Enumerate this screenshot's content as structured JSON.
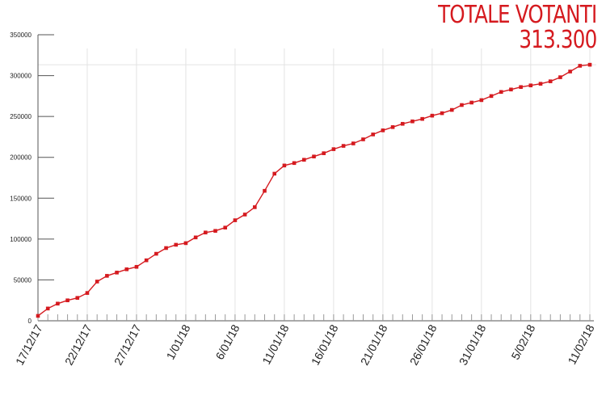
{
  "title": "TOTALE VOTANTI",
  "subtitle": "313.300",
  "colors": {
    "series": "#d51a1f",
    "grid": "#e3e3e3",
    "axis": "#555555",
    "text": "#222222"
  },
  "chart_data": {
    "type": "line",
    "title": "TOTALE VOTANTI",
    "subtitle": "313.300",
    "xlabel": "",
    "ylabel": "",
    "ylim": [
      0,
      350000
    ],
    "yticks": [
      0,
      50000,
      100000,
      150000,
      200000,
      250000,
      300000,
      350000
    ],
    "xlim": [
      "2017-12-17",
      "2018-02-11"
    ],
    "xtick_labels": [
      "17/12/17",
      "22/12/17",
      "27/12/17",
      "1/01/18",
      "6/01/18",
      "11/01/18",
      "16/01/18",
      "21/01/18",
      "26/01/18",
      "31/01/18",
      "5/02/18",
      "11/02/18"
    ],
    "xtick_dates": [
      "2017-12-17",
      "2017-12-22",
      "2017-12-27",
      "2018-01-01",
      "2018-01-06",
      "2018-01-11",
      "2018-01-16",
      "2018-01-21",
      "2018-01-26",
      "2018-01-31",
      "2018-02-05",
      "2018-02-11"
    ],
    "grid": "vertical at labeled dates",
    "reference_line": 313300,
    "series": [
      {
        "x": [
          "2017-12-17",
          "2017-12-18",
          "2017-12-19",
          "2017-12-20",
          "2017-12-21",
          "2017-12-22",
          "2017-12-23",
          "2017-12-24",
          "2017-12-25",
          "2017-12-26",
          "2017-12-27",
          "2017-12-28",
          "2017-12-29",
          "2017-12-30",
          "2017-12-31",
          "2018-01-01",
          "2018-01-02",
          "2018-01-03",
          "2018-01-04",
          "2018-01-05",
          "2018-01-06",
          "2018-01-07",
          "2018-01-08",
          "2018-01-09",
          "2018-01-10",
          "2018-01-11",
          "2018-01-12",
          "2018-01-13",
          "2018-01-14",
          "2018-01-15",
          "2018-01-16",
          "2018-01-17",
          "2018-01-18",
          "2018-01-19",
          "2018-01-20",
          "2018-01-21",
          "2018-01-22",
          "2018-01-23",
          "2018-01-24",
          "2018-01-25",
          "2018-01-26",
          "2018-01-27",
          "2018-01-28",
          "2018-01-29",
          "2018-01-30",
          "2018-01-31",
          "2018-02-01",
          "2018-02-02",
          "2018-02-03",
          "2018-02-04",
          "2018-02-05",
          "2018-02-06",
          "2018-02-07",
          "2018-02-08",
          "2018-02-09",
          "2018-02-10",
          "2018-02-11"
        ],
        "values": [
          6000,
          15000,
          21000,
          25000,
          28000,
          34000,
          48000,
          55000,
          59000,
          63000,
          66000,
          74000,
          82000,
          89000,
          93000,
          95000,
          102000,
          108000,
          110000,
          114000,
          123000,
          130000,
          139000,
          159000,
          180000,
          190000,
          193000,
          197000,
          201000,
          205000,
          210000,
          214000,
          217000,
          222000,
          228000,
          233000,
          237000,
          241000,
          244000,
          247000,
          251000,
          254000,
          258000,
          264000,
          267000,
          270000,
          275000,
          280000,
          283000,
          286000,
          288000,
          290000,
          293000,
          298000,
          305000,
          312000,
          313300
        ]
      }
    ]
  }
}
